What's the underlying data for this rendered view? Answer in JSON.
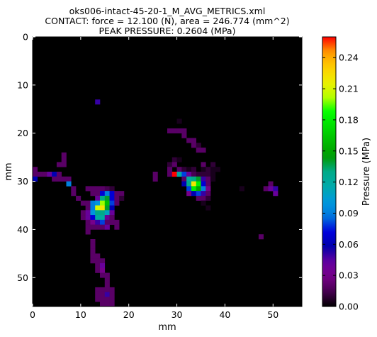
{
  "chart_data": {
    "type": "heatmap",
    "title_lines": [
      "oks006-intact-45-20-1_M_AVG_METRICS.xml",
      "CONTACT: force = 12.100 (N), area = 246.774 (mm^2)",
      "PEAK PRESSURE: 0.2604 (MPa)"
    ],
    "xlabel": "mm",
    "ylabel": "mm",
    "xlim": [
      0,
      56
    ],
    "ylim": [
      56,
      0
    ],
    "xticks": [
      "0",
      "10",
      "20",
      "30",
      "40",
      "50"
    ],
    "yticks": [
      "0",
      "10",
      "20",
      "30",
      "40",
      "50"
    ],
    "colorbar": {
      "label": "Pressure (MPa)",
      "range": [
        0.0,
        0.26
      ],
      "ticks": [
        "0.00",
        "0.03",
        "0.06",
        "0.09",
        "0.12",
        "0.15",
        "0.18",
        "0.21",
        "0.24"
      ],
      "colormap": "nipy_spectral"
    },
    "background_value": 0.0,
    "cells": [
      [
        13,
        13,
        0.05
      ],
      [
        30,
        17,
        0.005
      ],
      [
        28,
        19,
        0.02
      ],
      [
        29,
        19,
        0.02
      ],
      [
        30,
        19,
        0.02
      ],
      [
        31,
        19,
        0.02
      ],
      [
        31,
        20,
        0.02
      ],
      [
        32,
        21,
        0.02
      ],
      [
        33,
        21,
        0.02
      ],
      [
        33,
        22,
        0.02
      ],
      [
        34,
        22,
        0.01
      ],
      [
        34,
        23,
        0.02
      ],
      [
        35,
        23,
        0.02
      ],
      [
        6,
        24,
        0.02
      ],
      [
        6,
        25,
        0.02
      ],
      [
        29,
        25,
        0.01
      ],
      [
        30,
        25,
        0.005
      ],
      [
        5,
        26,
        0.02
      ],
      [
        6,
        26,
        0.02
      ],
      [
        28,
        26,
        0.01
      ],
      [
        29,
        26,
        0.02
      ],
      [
        35,
        26,
        0.02
      ],
      [
        37,
        26,
        0.01
      ],
      [
        0,
        27,
        0.02
      ],
      [
        28,
        27,
        0.02
      ],
      [
        30,
        27,
        0.02
      ],
      [
        31,
        27,
        0.01
      ],
      [
        32,
        27,
        0.005
      ],
      [
        33,
        27,
        0.01
      ],
      [
        35,
        27,
        0.005
      ],
      [
        36,
        27,
        0.01
      ],
      [
        37,
        27,
        0.005
      ],
      [
        38,
        27,
        0.005
      ],
      [
        0,
        28,
        0.02
      ],
      [
        1,
        28,
        0.02
      ],
      [
        2,
        28,
        0.02
      ],
      [
        3,
        28,
        0.04
      ],
      [
        4,
        28,
        0.06
      ],
      [
        5,
        28,
        0.02
      ],
      [
        25,
        28,
        0.02
      ],
      [
        28,
        28,
        0.02
      ],
      [
        29,
        28,
        0.26
      ],
      [
        30,
        28,
        0.12
      ],
      [
        31,
        28,
        0.08
      ],
      [
        32,
        28,
        0.04
      ],
      [
        33,
        28,
        0.015
      ],
      [
        34,
        28,
        0.01
      ],
      [
        35,
        28,
        0.01
      ],
      [
        36,
        28,
        0.01
      ],
      [
        37,
        28,
        0.005
      ],
      [
        0,
        29,
        0.06
      ],
      [
        4,
        29,
        0.02
      ],
      [
        5,
        29,
        0.02
      ],
      [
        6,
        29,
        0.02
      ],
      [
        7,
        29,
        0.02
      ],
      [
        25,
        29,
        0.02
      ],
      [
        31,
        29,
        0.02
      ],
      [
        32,
        29,
        0.12
      ],
      [
        33,
        29,
        0.13
      ],
      [
        34,
        29,
        0.14
      ],
      [
        35,
        29,
        0.05
      ],
      [
        36,
        29,
        0.02
      ],
      [
        37,
        29,
        0.005
      ],
      [
        7,
        30,
        0.09
      ],
      [
        31,
        30,
        0.06
      ],
      [
        32,
        30,
        0.13
      ],
      [
        33,
        30,
        0.22
      ],
      [
        34,
        30,
        0.18
      ],
      [
        35,
        30,
        0.07
      ],
      [
        36,
        30,
        0.02
      ],
      [
        49,
        30,
        0.02
      ],
      [
        8,
        31,
        0.02
      ],
      [
        11,
        31,
        0.02
      ],
      [
        12,
        31,
        0.02
      ],
      [
        13,
        31,
        0.02
      ],
      [
        14,
        31,
        0.02
      ],
      [
        15,
        31,
        0.015
      ],
      [
        16,
        31,
        0.01
      ],
      [
        32,
        31,
        0.08
      ],
      [
        33,
        31,
        0.18
      ],
      [
        34,
        31,
        0.15
      ],
      [
        35,
        31,
        0.09
      ],
      [
        36,
        31,
        0.03
      ],
      [
        43,
        31,
        0.005
      ],
      [
        48,
        31,
        0.02
      ],
      [
        49,
        31,
        0.04
      ],
      [
        50,
        31,
        0.05
      ],
      [
        8,
        32,
        0.02
      ],
      [
        12,
        32,
        0.02
      ],
      [
        13,
        32,
        0.02
      ],
      [
        14,
        32,
        0.07
      ],
      [
        15,
        32,
        0.09
      ],
      [
        16,
        32,
        0.07
      ],
      [
        17,
        32,
        0.02
      ],
      [
        18,
        32,
        0.02
      ],
      [
        32,
        32,
        0.03
      ],
      [
        33,
        32,
        0.06
      ],
      [
        34,
        32,
        0.08
      ],
      [
        35,
        32,
        0.05
      ],
      [
        36,
        32,
        0.02
      ],
      [
        50,
        32,
        0.04
      ],
      [
        9,
        33,
        0.02
      ],
      [
        13,
        33,
        0.04
      ],
      [
        14,
        33,
        0.13
      ],
      [
        15,
        33,
        0.14
      ],
      [
        16,
        33,
        0.07
      ],
      [
        17,
        33,
        0.02
      ],
      [
        18,
        33,
        0.01
      ],
      [
        34,
        33,
        0.02
      ],
      [
        35,
        33,
        0.02
      ],
      [
        36,
        33,
        0.01
      ],
      [
        10,
        34,
        0.02
      ],
      [
        11,
        34,
        0.02
      ],
      [
        12,
        34,
        0.09
      ],
      [
        13,
        34,
        0.1
      ],
      [
        14,
        34,
        0.2
      ],
      [
        15,
        34,
        0.16
      ],
      [
        16,
        34,
        0.08
      ],
      [
        17,
        34,
        0.02
      ],
      [
        35,
        34,
        0.005
      ],
      [
        11,
        35,
        0.02
      ],
      [
        12,
        35,
        0.09
      ],
      [
        13,
        35,
        0.21
      ],
      [
        14,
        35,
        0.22
      ],
      [
        15,
        35,
        0.14
      ],
      [
        16,
        35,
        0.06
      ],
      [
        36,
        35,
        0.005
      ],
      [
        10,
        36,
        0.02
      ],
      [
        11,
        36,
        0.04
      ],
      [
        12,
        36,
        0.1
      ],
      [
        13,
        36,
        0.13
      ],
      [
        14,
        36,
        0.13
      ],
      [
        15,
        36,
        0.11
      ],
      [
        16,
        36,
        0.04
      ],
      [
        10,
        37,
        0.02
      ],
      [
        11,
        37,
        0.04
      ],
      [
        12,
        37,
        0.07
      ],
      [
        13,
        37,
        0.12
      ],
      [
        14,
        37,
        0.12
      ],
      [
        15,
        37,
        0.04
      ],
      [
        16,
        37,
        0.02
      ],
      [
        11,
        38,
        0.02
      ],
      [
        12,
        38,
        0.03
      ],
      [
        13,
        38,
        0.05
      ],
      [
        14,
        38,
        0.08
      ],
      [
        15,
        38,
        0.02
      ],
      [
        16,
        38,
        0.02
      ],
      [
        17,
        38,
        0.02
      ],
      [
        11,
        39,
        0.02
      ],
      [
        12,
        39,
        0.02
      ],
      [
        13,
        39,
        0.02
      ],
      [
        14,
        39,
        0.02
      ],
      [
        15,
        39,
        0.04
      ],
      [
        17,
        39,
        0.02
      ],
      [
        11,
        40,
        0.02
      ],
      [
        47,
        41,
        0.02
      ],
      [
        12,
        42,
        0.02
      ],
      [
        12,
        43,
        0.02
      ],
      [
        12,
        44,
        0.02
      ],
      [
        12,
        45,
        0.02
      ],
      [
        13,
        45,
        0.02
      ],
      [
        12,
        46,
        0.02
      ],
      [
        13,
        46,
        0.02
      ],
      [
        14,
        46,
        0.02
      ],
      [
        13,
        47,
        0.02
      ],
      [
        14,
        47,
        0.04
      ],
      [
        13,
        48,
        0.02
      ],
      [
        14,
        48,
        0.03
      ],
      [
        14,
        49,
        0.02
      ],
      [
        15,
        49,
        0.02
      ],
      [
        15,
        50,
        0.02
      ],
      [
        15,
        51,
        0.02
      ],
      [
        13,
        52,
        0.02
      ],
      [
        14,
        52,
        0.02
      ],
      [
        15,
        52,
        0.02
      ],
      [
        16,
        52,
        0.02
      ],
      [
        13,
        53,
        0.02
      ],
      [
        14,
        53,
        0.02
      ],
      [
        15,
        53,
        0.05
      ],
      [
        16,
        53,
        0.02
      ],
      [
        13,
        54,
        0.02
      ],
      [
        14,
        54,
        0.02
      ],
      [
        15,
        54,
        0.02
      ],
      [
        16,
        54,
        0.02
      ],
      [
        14,
        55,
        0.02
      ],
      [
        15,
        55,
        0.02
      ],
      [
        16,
        55,
        0.02
      ]
    ]
  }
}
